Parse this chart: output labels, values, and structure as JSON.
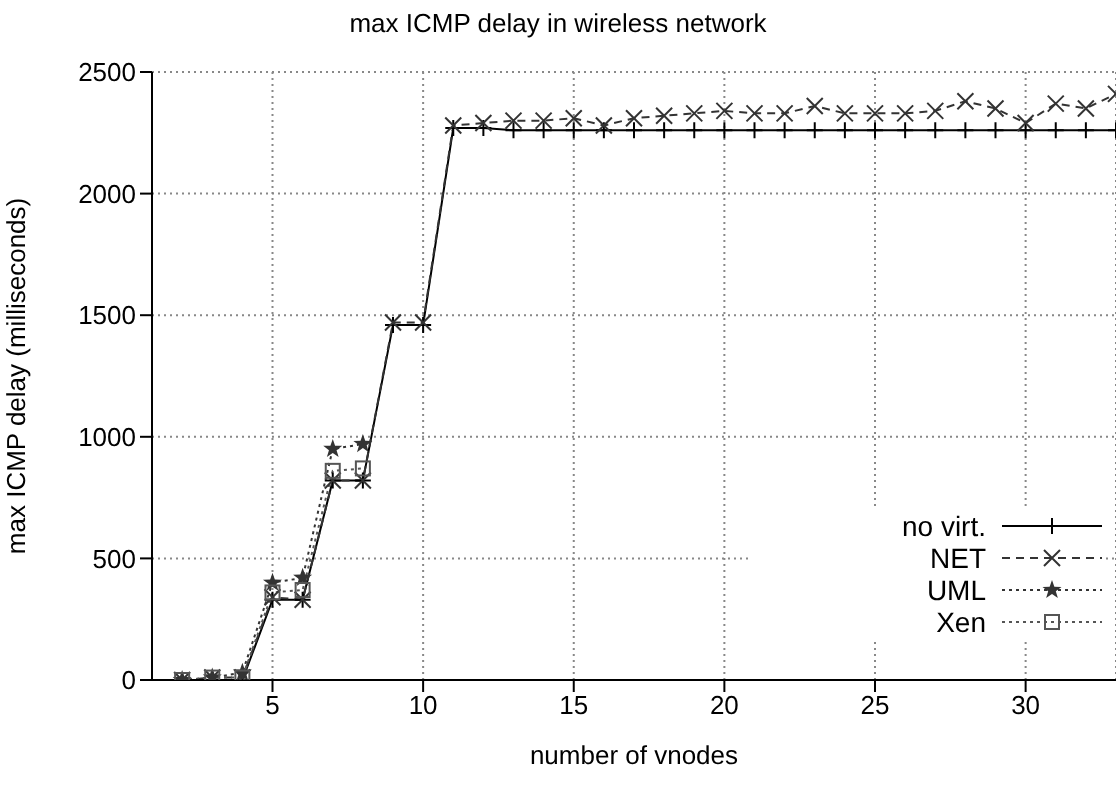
{
  "chart_data": {
    "type": "line",
    "title": "max ICMP delay in wireless network",
    "xlabel": "number of vnodes",
    "ylabel": "max ICMP delay (milliseconds)",
    "xlim": [
      1,
      33
    ],
    "xticks": [
      5,
      10,
      15,
      20,
      25,
      30
    ],
    "ylim": [
      0,
      2500
    ],
    "yticks": [
      0,
      500,
      1000,
      1500,
      2000,
      2500
    ],
    "grid": true,
    "legend": "bottom right",
    "series": [
      {
        "name": "no virt.",
        "color": "#000000",
        "marker": "plus",
        "line_style": "solid",
        "x": [
          2,
          3,
          4,
          5,
          6,
          7,
          8,
          9,
          10,
          11,
          12,
          13,
          14,
          15,
          16,
          17,
          18,
          19,
          20,
          21,
          22,
          23,
          24,
          25,
          26,
          27,
          28,
          29,
          30,
          31,
          32,
          33
        ],
        "values": [
          0,
          0,
          0,
          330,
          330,
          820,
          820,
          1460,
          1460,
          2270,
          2270,
          2260,
          2260,
          2260,
          2260,
          2260,
          2260,
          2260,
          2260,
          2260,
          2260,
          2260,
          2260,
          2260,
          2260,
          2260,
          2260,
          2260,
          2260,
          2260,
          2260,
          2260
        ]
      },
      {
        "name": "NET",
        "color": "#333333",
        "marker": "cross",
        "line_style": "dashed",
        "x": [
          2,
          3,
          4,
          5,
          6,
          7,
          8,
          9,
          10,
          11,
          12,
          13,
          14,
          15,
          16,
          17,
          18,
          19,
          20,
          21,
          22,
          23,
          24,
          25,
          26,
          27,
          28,
          29,
          30,
          31,
          32,
          33
        ],
        "values": [
          0,
          10,
          10,
          340,
          330,
          820,
          820,
          1470,
          1470,
          2280,
          2290,
          2300,
          2300,
          2310,
          2280,
          2310,
          2320,
          2330,
          2340,
          2330,
          2330,
          2360,
          2330,
          2330,
          2330,
          2340,
          2380,
          2350,
          2290,
          2370,
          2350,
          2410
        ]
      },
      {
        "name": "UML",
        "color": "#333333",
        "marker": "star",
        "line_style": "dotted",
        "x": [
          2,
          3,
          4,
          5,
          6,
          7,
          8
        ],
        "values": [
          0,
          10,
          30,
          400,
          420,
          950,
          970
        ]
      },
      {
        "name": "Xen",
        "color": "#555555",
        "marker": "square",
        "line_style": "dotted",
        "x": [
          2,
          3,
          4,
          5,
          6,
          7,
          8
        ],
        "values": [
          0,
          10,
          10,
          360,
          370,
          860,
          870
        ]
      }
    ]
  }
}
